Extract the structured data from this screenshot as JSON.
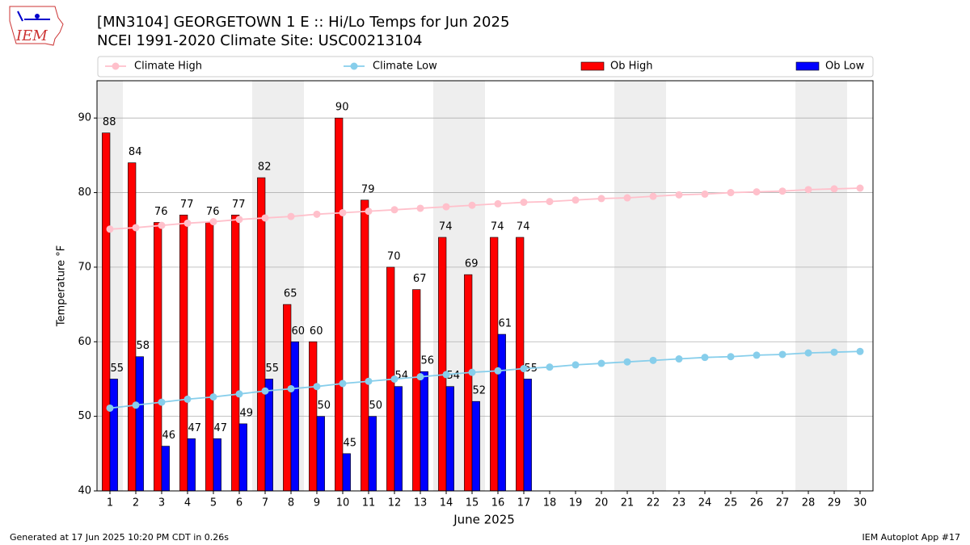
{
  "chart_data": {
    "type": "bar",
    "title": "[MN3104] GEORGETOWN 1 E :: Hi/Lo Temps for Jun 2025",
    "subtitle": "NCEI 1991-2020 Climate Site: USC00213104",
    "logo_text": "IEM",
    "xlabel": "June 2025",
    "ylabel": "Temperature °F",
    "footer_left": "Generated at 17 Jun 2025 10:20 PM CDT in 0.26s",
    "footer_right": "IEM Autoplot App #17",
    "x": [
      1,
      2,
      3,
      4,
      5,
      6,
      7,
      8,
      9,
      10,
      11,
      12,
      13,
      14,
      15,
      16,
      17,
      18,
      19,
      20,
      21,
      22,
      23,
      24,
      25,
      26,
      27,
      28,
      29,
      30
    ],
    "xlim": [
      0.5,
      30.5
    ],
    "xticks": [
      1,
      2,
      3,
      4,
      5,
      6,
      7,
      8,
      9,
      10,
      11,
      12,
      13,
      14,
      15,
      16,
      17,
      18,
      19,
      20,
      21,
      22,
      23,
      24,
      25,
      26,
      27,
      28,
      29,
      30
    ],
    "ylim": [
      40,
      95
    ],
    "yticks": [
      40,
      50,
      60,
      70,
      80,
      90
    ],
    "grid": true,
    "shaded_spans": [
      [
        0.5,
        1.5
      ],
      [
        6.5,
        8.5
      ],
      [
        13.5,
        15.5
      ],
      [
        20.5,
        22.5
      ],
      [
        27.5,
        29.5
      ]
    ],
    "shade_color": "#eeeeee",
    "legend": "top",
    "series": [
      {
        "name": "Climate High",
        "type": "line",
        "color": "#ffc0cb",
        "values": [
          75.1,
          75.3,
          75.6,
          75.9,
          76.1,
          76.4,
          76.6,
          76.8,
          77.1,
          77.3,
          77.5,
          77.7,
          77.9,
          78.1,
          78.3,
          78.5,
          78.7,
          78.8,
          79.0,
          79.2,
          79.3,
          79.5,
          79.7,
          79.8,
          80.0,
          80.1,
          80.2,
          80.4,
          80.5,
          80.6
        ]
      },
      {
        "name": "Climate Low",
        "type": "line",
        "color": "#87ceeb",
        "values": [
          51.1,
          51.5,
          51.9,
          52.3,
          52.6,
          53.0,
          53.4,
          53.7,
          54.0,
          54.4,
          54.7,
          55.0,
          55.3,
          55.6,
          55.9,
          56.1,
          56.4,
          56.6,
          56.9,
          57.1,
          57.3,
          57.5,
          57.7,
          57.9,
          58.0,
          58.2,
          58.3,
          58.5,
          58.6,
          58.7
        ]
      },
      {
        "name": "Ob High",
        "type": "bar",
        "color": "#ff0000",
        "values": [
          88,
          84,
          76,
          77,
          76,
          77,
          82,
          65,
          60,
          90,
          79,
          70,
          67,
          74,
          69,
          74,
          74,
          null,
          null,
          null,
          null,
          null,
          null,
          null,
          null,
          null,
          null,
          null,
          null,
          null
        ]
      },
      {
        "name": "Ob Low",
        "type": "bar",
        "color": "#0000ff",
        "values": [
          55,
          58,
          46,
          47,
          47,
          49,
          55,
          60,
          50,
          45,
          50,
          54,
          56,
          54,
          52,
          61,
          55,
          null,
          null,
          null,
          null,
          null,
          null,
          null,
          null,
          null,
          null,
          null,
          null,
          null
        ]
      }
    ]
  }
}
